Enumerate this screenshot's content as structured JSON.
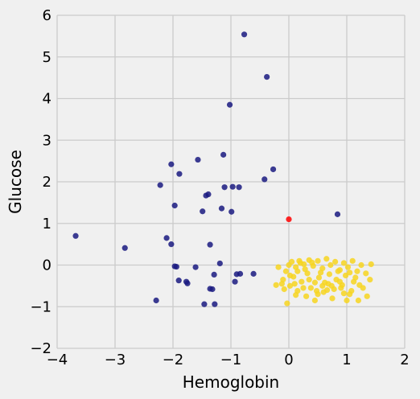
{
  "chart_data": {
    "type": "scatter",
    "title": "",
    "xlabel": "Hemoglobin",
    "ylabel": "Glucose",
    "xlim": [
      -4,
      2
    ],
    "ylim": [
      -2,
      6
    ],
    "x_ticks": [
      -4,
      -3,
      -2,
      -1,
      0,
      1,
      2
    ],
    "y_ticks": [
      -2,
      -1,
      0,
      1,
      2,
      3,
      4,
      5,
      6
    ],
    "x_tick_labels": [
      "−4",
      "−3",
      "−2",
      "−1",
      "0",
      "1",
      "2"
    ],
    "y_tick_labels": [
      "−2",
      "−1",
      "0",
      "1",
      "2",
      "3",
      "4",
      "5",
      "6"
    ],
    "grid": true,
    "background": "#f0f0f0",
    "grid_color": "#cbcbcb",
    "series": [
      {
        "color": "#1a1a80",
        "points": [
          [
            -0.77,
            5.54
          ],
          [
            -0.38,
            4.52
          ],
          [
            -1.02,
            3.85
          ],
          [
            -1.13,
            2.65
          ],
          [
            -1.57,
            2.53
          ],
          [
            -2.03,
            2.42
          ],
          [
            -0.27,
            2.3
          ],
          [
            -1.89,
            2.19
          ],
          [
            -0.42,
            2.06
          ],
          [
            -2.22,
            1.92
          ],
          [
            -1.11,
            1.87
          ],
          [
            -0.97,
            1.88
          ],
          [
            -0.86,
            1.87
          ],
          [
            -1.39,
            1.7
          ],
          [
            -1.43,
            1.67
          ],
          [
            -1.97,
            1.43
          ],
          [
            -1.16,
            1.36
          ],
          [
            -1.49,
            1.29
          ],
          [
            -0.99,
            1.28
          ],
          [
            0.84,
            1.22
          ],
          [
            -3.68,
            0.7
          ],
          [
            -2.11,
            0.65
          ],
          [
            -2.03,
            0.5
          ],
          [
            -1.36,
            0.49
          ],
          [
            -2.83,
            0.41
          ],
          [
            -1.19,
            0.04
          ],
          [
            -1.97,
            -0.03
          ],
          [
            -1.94,
            -0.04
          ],
          [
            -1.61,
            -0.05
          ],
          [
            -0.61,
            -0.21
          ],
          [
            -0.84,
            -0.21
          ],
          [
            -0.9,
            -0.22
          ],
          [
            -1.29,
            -0.23
          ],
          [
            -1.9,
            -0.37
          ],
          [
            -1.77,
            -0.4
          ],
          [
            -1.75,
            -0.44
          ],
          [
            -0.93,
            -0.4
          ],
          [
            -1.36,
            -0.57
          ],
          [
            -1.32,
            -0.58
          ],
          [
            -2.29,
            -0.85
          ],
          [
            -1.46,
            -0.94
          ],
          [
            -1.28,
            -0.94
          ]
        ]
      },
      {
        "color": "#f7d520",
        "points": [
          [
            0.0,
            0.0
          ],
          [
            0.05,
            0.08
          ],
          [
            0.12,
            -0.05
          ],
          [
            0.2,
            0.05
          ],
          [
            0.28,
            -0.1
          ],
          [
            0.35,
            0.12
          ],
          [
            0.42,
            -0.02
          ],
          [
            0.5,
            0.1
          ],
          [
            0.58,
            -0.08
          ],
          [
            0.65,
            0.15
          ],
          [
            0.72,
            0.0
          ],
          [
            0.8,
            0.08
          ],
          [
            0.88,
            -0.12
          ],
          [
            0.95,
            0.05
          ],
          [
            1.02,
            -0.05
          ],
          [
            1.1,
            0.1
          ],
          [
            1.18,
            -0.15
          ],
          [
            1.25,
            0.0
          ],
          [
            1.33,
            -0.2
          ],
          [
            1.42,
            0.02
          ],
          [
            1.4,
            -0.35
          ],
          [
            1.35,
            -0.75
          ],
          [
            1.28,
            -0.55
          ],
          [
            1.2,
            -0.85
          ],
          [
            1.12,
            -0.4
          ],
          [
            1.05,
            -0.7
          ],
          [
            0.98,
            -0.25
          ],
          [
            0.9,
            -0.55
          ],
          [
            0.82,
            -0.35
          ],
          [
            0.75,
            -0.8
          ],
          [
            0.68,
            -0.45
          ],
          [
            0.6,
            -0.65
          ],
          [
            0.52,
            -0.3
          ],
          [
            0.45,
            -0.85
          ],
          [
            0.38,
            -0.55
          ],
          [
            0.3,
            -0.75
          ],
          [
            0.22,
            -0.4
          ],
          [
            0.15,
            -0.62
          ],
          [
            0.08,
            -0.28
          ],
          [
            0.02,
            -0.5
          ],
          [
            -0.05,
            -0.15
          ],
          [
            -0.12,
            -0.45
          ],
          [
            -0.18,
            -0.05
          ],
          [
            -0.22,
            -0.48
          ],
          [
            -0.1,
            -0.35
          ],
          [
            -0.03,
            -0.92
          ],
          [
            0.12,
            -0.72
          ],
          [
            0.25,
            -0.55
          ],
          [
            0.35,
            -0.35
          ],
          [
            0.48,
            -0.62
          ],
          [
            0.55,
            -0.18
          ],
          [
            0.62,
            -0.42
          ],
          [
            0.7,
            -0.22
          ],
          [
            0.78,
            -0.58
          ],
          [
            0.85,
            -0.15
          ],
          [
            0.92,
            -0.48
          ],
          [
            1.0,
            -0.85
          ],
          [
            1.08,
            -0.62
          ],
          [
            1.15,
            -0.3
          ],
          [
            1.22,
            -0.48
          ],
          [
            0.18,
            0.1
          ],
          [
            0.26,
            0.02
          ],
          [
            0.4,
            0.06
          ],
          [
            0.02,
            -0.25
          ],
          [
            -0.08,
            -0.58
          ],
          [
            0.45,
            -0.42
          ],
          [
            0.5,
            -0.7
          ],
          [
            0.58,
            -0.5
          ],
          [
            0.66,
            -0.6
          ],
          [
            0.74,
            -0.5
          ],
          [
            0.32,
            -0.2
          ],
          [
            0.1,
            -0.45
          ],
          [
            0.95,
            -0.68
          ],
          [
            1.05,
            -0.18
          ],
          [
            0.88,
            -0.4
          ],
          [
            0.15,
            -0.15
          ]
        ]
      },
      {
        "color": "#ff0000",
        "points": [
          [
            0.0,
            1.1
          ]
        ]
      }
    ]
  }
}
